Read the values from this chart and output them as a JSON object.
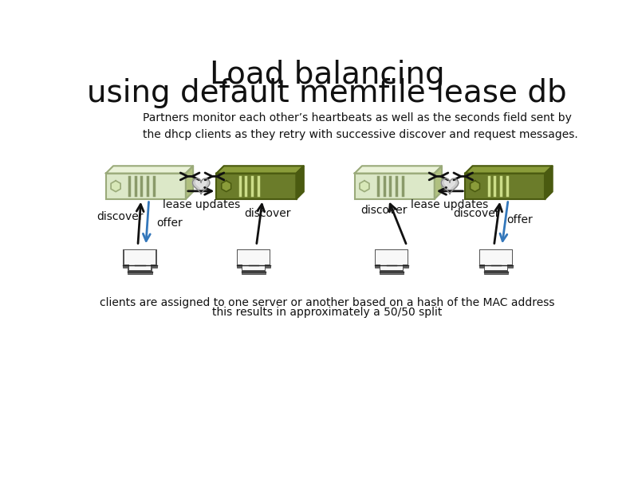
{
  "title_line1": "Load balancing",
  "title_line2": "using default memfile lease db",
  "subtitle": "Partners monitor each other’s heartbeats as well as the seconds field sent by\nthe dhcp clients as they retry with successive discover and request messages.",
  "footer_line1": "clients are assigned to one server or another based on a hash of the MAC address",
  "footer_line2": "this results in approximately a 50/50 split",
  "bg_color": "#ffffff",
  "server_light_color": "#dce8c8",
  "server_light_edge": "#9aaa7a",
  "server_light_top": "#eaf2d8",
  "server_dark_color": "#6b7c2a",
  "server_dark_edge": "#4a5a10",
  "server_dark_top": "#8a9c3a",
  "heart_fill": "#aaaaaa",
  "heart_edge": "#666666",
  "arrow_black": "#111111",
  "arrow_blue": "#3377bb",
  "laptop_dark": "#333333",
  "laptop_mid": "#888888",
  "laptop_screen": "#f8f8f8",
  "laptop_base": "#444444"
}
